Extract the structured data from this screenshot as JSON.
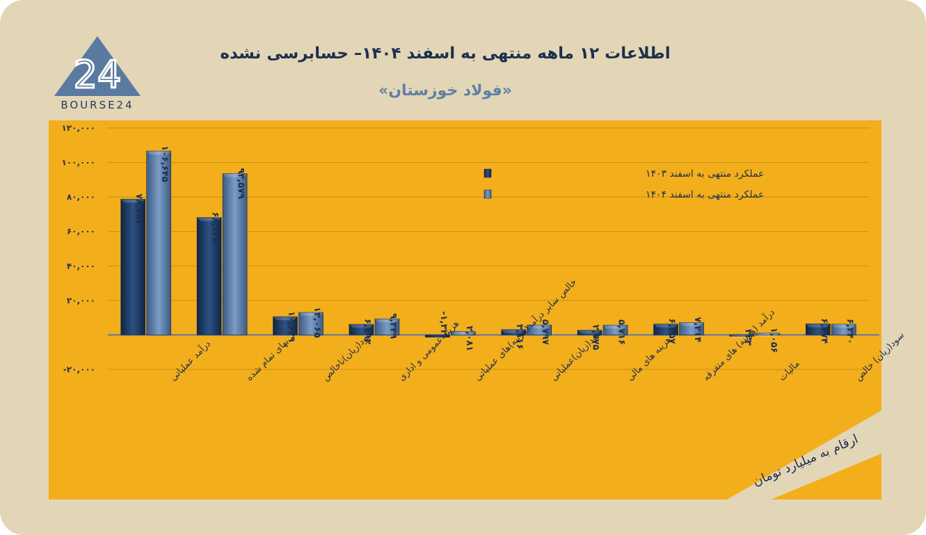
{
  "header": {
    "title": "اطلاعات ۱۲ ماهه منتهی به اسفند ۱۴۰۴– حسابرسی نشده",
    "subtitle": "«فولاد خوزستان»"
  },
  "logo": {
    "text": "BOURSE24",
    "mark": "24"
  },
  "note": "ارقام به میلیارد تومان",
  "colors": {
    "card": "#e2d6b7",
    "plot_bg": "#f3ae1c",
    "series_1403": "#1f3e66",
    "series_1404": "#54769e",
    "grid": "#c98e10",
    "text": "#1e2f4e"
  },
  "chart_data": {
    "type": "bar",
    "ylim": [
      -20000,
      120000
    ],
    "yticks": [
      -20000,
      0,
      20000,
      40000,
      60000,
      80000,
      100000,
      120000
    ],
    "ytick_labels": [
      "-۲۰,۰۰۰",
      "",
      "۲۰,۰۰۰",
      "۴۰,۰۰۰",
      "۶۰,۰۰۰",
      "۸۰,۰۰۰",
      "۱۰۰,۰۰۰",
      "۱۲۰,۰۰۰"
    ],
    "grid": true,
    "legend_position": "top-center",
    "categories": [
      "درآمد عملیاتی",
      "بهای تمام شده",
      "سود(زیان)ناخالص",
      "هزینه عمومی و اداری",
      "خالص سایر درآمد(هزینه)های عملیاتی",
      "سود(زیان)عملیاتی",
      "هزینه های مالی",
      "درآمد (هزینه) های متفرقه",
      "مالیات",
      "سود(زیان) خالص"
    ],
    "series": [
      {
        "name": "عملکرد منتهی به اسفند ۱۴۰۳",
        "values": [
          78757,
          68128,
          10629,
          6193,
          -1320,
          3116,
          2775,
          6357,
          223,
          6474
        ],
        "labels": [
          "۷۸,۷۵۷",
          "۶۸,۱۲۸",
          "۱۰,۶۲۹",
          "۶,۱۹۳",
          "-۱,۳۲۰",
          "۳,۱۱۶",
          "۲,۷۷۵",
          "۶,۳۵۷",
          "۲۲۳",
          "۶,۴۷۴"
        ]
      },
      {
        "name": "عملکرد منتهی به اسفند ۱۴۰۴",
        "values": [
          106645,
          93579,
          13065,
          9349,
          2081,
          5797,
          5716,
          7214,
          1056,
          6240
        ],
        "labels": [
          "۱۰۶,۶۴۵",
          "۹۳,۵۷۹",
          "۱۳,۰۶۵",
          "۹,۳۴۹",
          "۲,۰۸۱",
          "۵,۷۹۷",
          "۵,۷۱۶",
          "۷,۲۱۴",
          "۱,۰۵۶",
          "۶,۲۴۰"
        ]
      }
    ]
  }
}
